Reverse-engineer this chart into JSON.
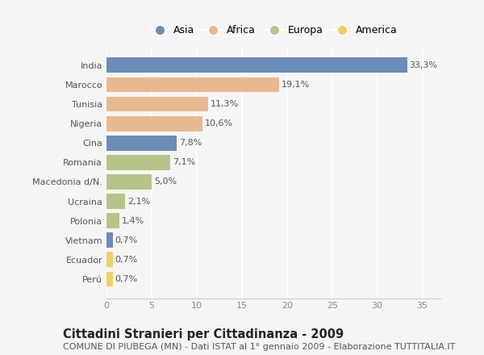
{
  "countries": [
    "India",
    "Marocco",
    "Tunisia",
    "Nigeria",
    "Cina",
    "Romania",
    "Macedonia d/N.",
    "Ucraina",
    "Polonia",
    "Vietnam",
    "Ecuador",
    "Perú"
  ],
  "values": [
    33.3,
    19.1,
    11.3,
    10.6,
    7.8,
    7.1,
    5.0,
    2.1,
    1.4,
    0.7,
    0.7,
    0.7
  ],
  "labels": [
    "33,3%",
    "19,1%",
    "11,3%",
    "10,6%",
    "7,8%",
    "7,1%",
    "5,0%",
    "2,1%",
    "1,4%",
    "0,7%",
    "0,7%",
    "0,7%"
  ],
  "continents": [
    "Asia",
    "Africa",
    "Africa",
    "Africa",
    "Asia",
    "Europa",
    "Europa",
    "Europa",
    "Europa",
    "Asia",
    "America",
    "America"
  ],
  "colors": {
    "Asia": "#6b8cba",
    "Africa": "#e8b990",
    "Europa": "#b5c48a",
    "America": "#f0d060"
  },
  "legend_order": [
    "Asia",
    "Africa",
    "Europa",
    "America"
  ],
  "title": "Cittadini Stranieri per Cittadinanza - 2009",
  "subtitle": "COMUNE DI PIUBEGA (MN) - Dati ISTAT al 1° gennaio 2009 - Elaborazione TUTTITALIA.IT",
  "xlim": [
    0,
    37
  ],
  "xticks": [
    0,
    5,
    10,
    15,
    20,
    25,
    30,
    35
  ],
  "bg_color": "#f5f5f5",
  "plot_bg_color": "#f5f5f5",
  "grid_color": "#ffffff",
  "bar_height": 0.78,
  "title_fontsize": 10.5,
  "subtitle_fontsize": 8,
  "label_fontsize": 8,
  "tick_fontsize": 8,
  "legend_fontsize": 9
}
